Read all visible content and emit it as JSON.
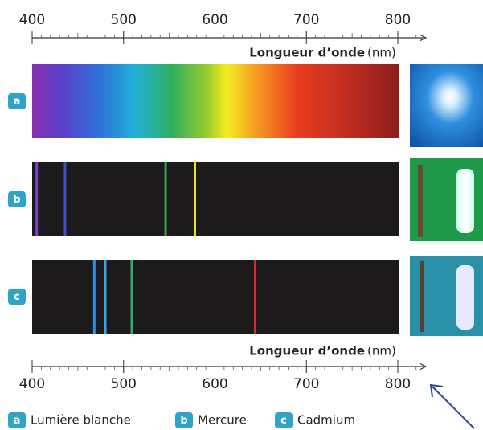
{
  "top_axis": {
    "label": "Longueur d’onde",
    "unit": "(nm)",
    "range": [
      400,
      800
    ],
    "ticks": [
      400,
      500,
      600,
      700,
      800
    ]
  },
  "spectra": [
    {
      "badge": "a",
      "lines": []
    },
    {
      "badge": "b",
      "lines": [
        {
          "nm": 405,
          "color": "#7d3fc4"
        },
        {
          "nm": 436,
          "color": "#3b4fc9"
        },
        {
          "nm": 546,
          "color": "#2fa84a"
        },
        {
          "nm": 578,
          "color": "#f2e21e"
        }
      ]
    },
    {
      "badge": "c",
      "lines": [
        {
          "nm": 468,
          "color": "#2f8fe0"
        },
        {
          "nm": 480,
          "color": "#36a6e6"
        },
        {
          "nm": 509,
          "color": "#2fb060"
        },
        {
          "nm": 644,
          "color": "#e02a2a"
        }
      ]
    }
  ],
  "bottom_axis": {
    "label": "Longueur d’onde",
    "unit": "(nm)",
    "range": [
      400,
      800
    ],
    "ticks": [
      400,
      500,
      600,
      700,
      800
    ]
  },
  "legend": [
    {
      "badge": "a",
      "label": "Lumière blanche"
    },
    {
      "badge": "b",
      "label": "Mercure"
    },
    {
      "badge": "c",
      "label": "Cadmium"
    }
  ]
}
